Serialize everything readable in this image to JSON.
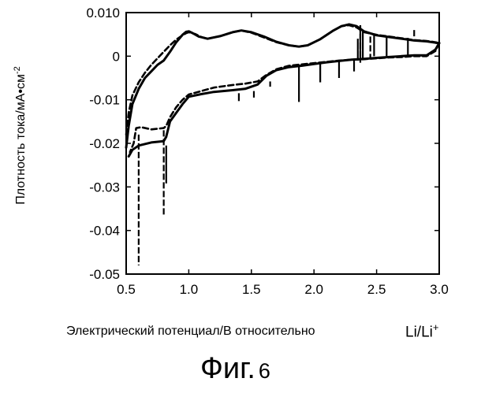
{
  "figure_label": {
    "prefix": "Фиг.",
    "number": "6"
  },
  "chart_data": {
    "type": "line",
    "title": "",
    "xlabel": "Электрический потенциал/В относительно",
    "xlabel_unit": "Li/Li",
    "xlabel_unit_sup": "+",
    "ylabel": "Плотность тока/мА•см",
    "ylabel_sup": "-2",
    "xlim": [
      0.5,
      3.0
    ],
    "ylim": [
      -0.05,
      0.01
    ],
    "xticks": [
      {
        "value": 0.5,
        "label": "0.5"
      },
      {
        "value": 1.0,
        "label": "1.0"
      },
      {
        "value": 1.5,
        "label": "1.5"
      },
      {
        "value": 2.0,
        "label": "2.0"
      },
      {
        "value": 2.5,
        "label": "2.5"
      },
      {
        "value": 3.0,
        "label": "3.0"
      }
    ],
    "yticks": [
      {
        "value": 0.01,
        "label": "0.010"
      },
      {
        "value": 0.0,
        "label": "0"
      },
      {
        "value": -0.01,
        "label": "-0.01"
      },
      {
        "value": -0.02,
        "label": "-0.02"
      },
      {
        "value": -0.03,
        "label": "-0.03"
      },
      {
        "value": -0.04,
        "label": "-0.04"
      },
      {
        "value": -0.05,
        "label": "-0.05"
      }
    ],
    "grid": false,
    "legend": "none",
    "line_color": "#000000",
    "series": [
      {
        "style": "solid",
        "upper": [
          [
            0.5,
            -0.021
          ],
          [
            0.52,
            -0.016
          ],
          [
            0.55,
            -0.011
          ],
          [
            0.6,
            -0.0075
          ],
          [
            0.65,
            -0.005
          ],
          [
            0.7,
            -0.0035
          ],
          [
            0.75,
            -0.002
          ],
          [
            0.8,
            -0.001
          ],
          [
            0.85,
            0.001
          ],
          [
            0.9,
            0.0032
          ],
          [
            0.95,
            0.0049
          ],
          [
            0.98,
            0.0056
          ],
          [
            1.0,
            0.0057
          ],
          [
            1.03,
            0.0053
          ],
          [
            1.08,
            0.0045
          ],
          [
            1.15,
            0.004
          ],
          [
            1.25,
            0.0046
          ],
          [
            1.35,
            0.0055
          ],
          [
            1.42,
            0.0059
          ],
          [
            1.5,
            0.0055
          ],
          [
            1.6,
            0.0045
          ],
          [
            1.7,
            0.0033
          ],
          [
            1.8,
            0.0025
          ],
          [
            1.88,
            0.0022
          ],
          [
            1.95,
            0.0025
          ],
          [
            2.05,
            0.0039
          ],
          [
            2.15,
            0.0058
          ],
          [
            2.22,
            0.0069
          ],
          [
            2.28,
            0.0073
          ],
          [
            2.34,
            0.0069
          ],
          [
            2.4,
            0.0057
          ],
          [
            2.5,
            0.0048
          ],
          [
            2.6,
            0.0044
          ],
          [
            2.7,
            0.004
          ],
          [
            2.8,
            0.0036
          ],
          [
            2.9,
            0.0034
          ],
          [
            2.97,
            0.0031
          ],
          [
            3.0,
            0.003
          ]
        ],
        "lower": [
          [
            3.0,
            0.003
          ],
          [
            2.97,
            0.0015
          ],
          [
            2.9,
            0.0002
          ],
          [
            2.8,
            0.0002
          ],
          [
            2.7,
            0.0
          ],
          [
            2.6,
            -0.0002
          ],
          [
            2.5,
            -0.0004
          ],
          [
            2.4,
            -0.0006
          ],
          [
            2.3,
            -0.0008
          ],
          [
            2.2,
            -0.0011
          ],
          [
            2.1,
            -0.0014
          ],
          [
            2.0,
            -0.0018
          ],
          [
            1.9,
            -0.0022
          ],
          [
            1.8,
            -0.0025
          ],
          [
            1.7,
            -0.0032
          ],
          [
            1.62,
            -0.0045
          ],
          [
            1.55,
            -0.0065
          ],
          [
            1.45,
            -0.0075
          ],
          [
            1.35,
            -0.0078
          ],
          [
            1.2,
            -0.0082
          ],
          [
            1.1,
            -0.0087
          ],
          [
            1.0,
            -0.0093
          ],
          [
            0.95,
            -0.011
          ],
          [
            0.9,
            -0.013
          ],
          [
            0.85,
            -0.015
          ],
          [
            0.82,
            -0.0185
          ],
          [
            0.8,
            -0.0195
          ],
          [
            0.7,
            -0.0198
          ],
          [
            0.6,
            -0.0205
          ],
          [
            0.55,
            -0.0215
          ],
          [
            0.52,
            -0.023
          ]
        ],
        "spikes": [
          [
            0.82,
            -0.0205,
            -0.0292
          ],
          [
            1.4,
            -0.0085,
            -0.0103
          ],
          [
            1.52,
            -0.008,
            -0.0095
          ],
          [
            1.65,
            -0.0058,
            -0.007
          ],
          [
            1.88,
            -0.0022,
            -0.0105
          ],
          [
            2.05,
            -0.0018,
            -0.006
          ],
          [
            2.2,
            -0.0011,
            -0.005
          ],
          [
            2.32,
            -0.0008,
            -0.0035
          ],
          [
            2.35,
            0.004,
            -0.001
          ],
          [
            2.37,
            0.0069,
            -0.0004
          ],
          [
            2.39,
            0.0058,
            -0.0006
          ],
          [
            2.48,
            0.0048,
            0.0
          ],
          [
            2.58,
            0.0044,
            0.0
          ],
          [
            2.75,
            0.0042,
            0.0
          ]
        ]
      },
      {
        "style": "dashed",
        "upper": [
          [
            0.5,
            -0.018
          ],
          [
            0.52,
            -0.013
          ],
          [
            0.55,
            -0.009
          ],
          [
            0.6,
            -0.006
          ],
          [
            0.65,
            -0.0038
          ],
          [
            0.7,
            -0.002
          ],
          [
            0.75,
            -0.0005
          ],
          [
            0.8,
            0.001
          ],
          [
            0.85,
            0.0025
          ],
          [
            0.9,
            0.0038
          ],
          [
            0.95,
            0.0048
          ],
          [
            0.98,
            0.0053
          ],
          [
            1.0,
            0.0055
          ],
          [
            1.05,
            0.0051
          ],
          [
            1.1,
            0.0044
          ],
          [
            1.15,
            0.004
          ],
          [
            1.25,
            0.0046
          ],
          [
            1.35,
            0.0055
          ],
          [
            1.42,
            0.0059
          ],
          [
            1.5,
            0.0054
          ],
          [
            1.6,
            0.0043
          ],
          [
            1.7,
            0.0032
          ],
          [
            1.8,
            0.0025
          ],
          [
            1.88,
            0.0022
          ],
          [
            1.95,
            0.0025
          ],
          [
            2.05,
            0.0039
          ],
          [
            2.15,
            0.0058
          ],
          [
            2.22,
            0.0069
          ],
          [
            2.28,
            0.0071
          ],
          [
            2.34,
            0.0066
          ],
          [
            2.4,
            0.0055
          ],
          [
            2.5,
            0.0049
          ],
          [
            2.6,
            0.0045
          ],
          [
            2.7,
            0.0041
          ],
          [
            2.8,
            0.0037
          ],
          [
            2.9,
            0.0035
          ],
          [
            2.97,
            0.0032
          ],
          [
            3.0,
            0.003
          ]
        ],
        "lower": [
          [
            3.0,
            0.003
          ],
          [
            2.97,
            0.0012
          ],
          [
            2.9,
            0.0
          ],
          [
            2.8,
            0.0
          ],
          [
            2.7,
            -0.0002
          ],
          [
            2.6,
            -0.0003
          ],
          [
            2.5,
            -0.0005
          ],
          [
            2.4,
            -0.0007
          ],
          [
            2.3,
            -0.0008
          ],
          [
            2.2,
            -0.001
          ],
          [
            2.1,
            -0.0013
          ],
          [
            2.0,
            -0.0016
          ],
          [
            1.9,
            -0.0019
          ],
          [
            1.8,
            -0.0022
          ],
          [
            1.7,
            -0.003
          ],
          [
            1.62,
            -0.0043
          ],
          [
            1.55,
            -0.0058
          ],
          [
            1.45,
            -0.0063
          ],
          [
            1.35,
            -0.0066
          ],
          [
            1.2,
            -0.0072
          ],
          [
            1.1,
            -0.008
          ],
          [
            1.0,
            -0.0088
          ],
          [
            0.95,
            -0.01
          ],
          [
            0.9,
            -0.0117
          ],
          [
            0.85,
            -0.014
          ],
          [
            0.82,
            -0.016
          ],
          [
            0.8,
            -0.0165
          ],
          [
            0.7,
            -0.0168
          ],
          [
            0.62,
            -0.0163
          ],
          [
            0.58,
            -0.0165
          ],
          [
            0.56,
            -0.02
          ],
          [
            0.53,
            -0.022
          ]
        ],
        "spikes": [
          [
            0.6,
            -0.018,
            -0.048
          ],
          [
            0.8,
            -0.017,
            -0.0365
          ],
          [
            2.37,
            0.0071,
            -0.0015
          ],
          [
            2.45,
            0.0045,
            -0.0005
          ],
          [
            2.8,
            0.006,
            0.0045
          ]
        ]
      }
    ]
  }
}
